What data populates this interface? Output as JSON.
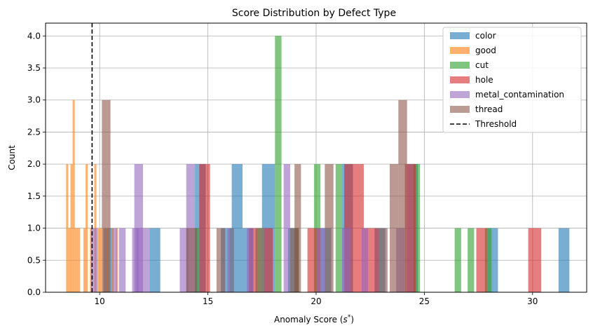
{
  "chart_data": {
    "type": "bar",
    "title": "Score Distribution by Defect Type",
    "xlabel_main": "Anomaly Score (",
    "xlabel_var": "s",
    "xlabel_sup": "*",
    "xlabel_end": ")",
    "ylabel": "Count",
    "xlim": [
      7.5,
      32.5
    ],
    "ylim": [
      0,
      4.2
    ],
    "xticks": [
      10,
      15,
      20,
      25,
      30
    ],
    "yticks": [
      0.0,
      0.5,
      1.0,
      1.5,
      2.0,
      2.5,
      3.0,
      3.5,
      4.0
    ],
    "grid": true,
    "legend_position": "top-right",
    "series": [
      {
        "name": "color",
        "color": "#1f77b4",
        "bins": [
          [
            10.2,
            10.6,
            1
          ],
          [
            12.3,
            12.8,
            1
          ],
          [
            14.4,
            14.9,
            2
          ],
          [
            15.6,
            16.1,
            1
          ],
          [
            16.1,
            16.6,
            2
          ],
          [
            16.6,
            17.1,
            1
          ],
          [
            17.5,
            18.1,
            2
          ],
          [
            18.7,
            19.2,
            1
          ],
          [
            20.2,
            20.7,
            1
          ],
          [
            21.2,
            21.7,
            2
          ],
          [
            22.7,
            23.2,
            1
          ],
          [
            24.2,
            24.7,
            2
          ],
          [
            27.9,
            28.4,
            1
          ],
          [
            31.2,
            31.7,
            1
          ]
        ]
      },
      {
        "name": "good",
        "color": "#ff7f0e",
        "bins": [
          [
            8.45,
            8.55,
            2
          ],
          [
            8.55,
            8.65,
            1
          ],
          [
            8.65,
            8.75,
            2
          ],
          [
            8.75,
            8.85,
            3
          ],
          [
            8.85,
            9.0,
            1
          ],
          [
            9.0,
            9.1,
            1
          ],
          [
            9.25,
            9.35,
            1
          ],
          [
            9.35,
            9.45,
            2
          ],
          [
            9.55,
            9.65,
            1
          ],
          [
            9.75,
            9.85,
            2
          ],
          [
            9.9,
            10.0,
            1
          ],
          [
            10.0,
            10.1,
            1
          ],
          [
            10.15,
            10.25,
            1
          ],
          [
            10.3,
            10.4,
            1
          ],
          [
            10.55,
            10.65,
            1
          ],
          [
            10.75,
            10.85,
            1
          ]
        ]
      },
      {
        "name": "cut",
        "color": "#2ca02c",
        "bins": [
          [
            14.4,
            14.6,
            1
          ],
          [
            16.0,
            16.2,
            1
          ],
          [
            17.3,
            17.5,
            1
          ],
          [
            18.1,
            18.4,
            4
          ],
          [
            19.0,
            19.2,
            1
          ],
          [
            19.9,
            20.2,
            2
          ],
          [
            20.9,
            21.2,
            2
          ],
          [
            24.5,
            24.8,
            2
          ],
          [
            26.4,
            26.7,
            1
          ],
          [
            27.0,
            27.3,
            1
          ],
          [
            27.8,
            28.1,
            1
          ]
        ]
      },
      {
        "name": "hole",
        "color": "#d62728",
        "bins": [
          [
            14.6,
            15.1,
            2
          ],
          [
            16.9,
            17.3,
            1
          ],
          [
            17.6,
            18.0,
            1
          ],
          [
            19.6,
            20.2,
            1
          ],
          [
            21.3,
            22.2,
            2
          ],
          [
            22.2,
            22.9,
            1
          ],
          [
            24.1,
            24.6,
            2
          ],
          [
            27.4,
            27.9,
            1
          ],
          [
            29.8,
            30.4,
            1
          ]
        ]
      },
      {
        "name": "metal_contamination",
        "color": "#9467bd",
        "bins": [
          [
            9.6,
            9.9,
            1
          ],
          [
            10.6,
            10.8,
            1
          ],
          [
            10.9,
            11.2,
            1
          ],
          [
            11.5,
            11.8,
            1
          ],
          [
            11.6,
            12.0,
            2
          ],
          [
            11.7,
            12.3,
            1
          ],
          [
            13.7,
            14.1,
            1
          ],
          [
            14.0,
            14.4,
            2
          ],
          [
            15.9,
            16.2,
            1
          ],
          [
            16.8,
            17.1,
            1
          ],
          [
            18.5,
            18.8,
            2
          ],
          [
            20.0,
            20.4,
            1
          ],
          [
            21.2,
            21.6,
            1
          ],
          [
            22.1,
            22.4,
            1
          ],
          [
            23.7,
            24.1,
            1
          ]
        ]
      },
      {
        "name": "thread",
        "color": "#8c564b",
        "bins": [
          [
            10.1,
            10.5,
            3
          ],
          [
            14.0,
            14.5,
            1
          ],
          [
            15.4,
            15.8,
            1
          ],
          [
            17.2,
            17.6,
            1
          ],
          [
            18.8,
            19.2,
            1
          ],
          [
            19.0,
            19.3,
            2
          ],
          [
            20.4,
            20.8,
            2
          ],
          [
            22.9,
            23.3,
            1
          ],
          [
            23.4,
            23.8,
            2
          ],
          [
            23.8,
            24.2,
            3
          ]
        ]
      }
    ],
    "threshold": {
      "name": "Threshold",
      "x": 9.65,
      "color": "#000000"
    }
  }
}
